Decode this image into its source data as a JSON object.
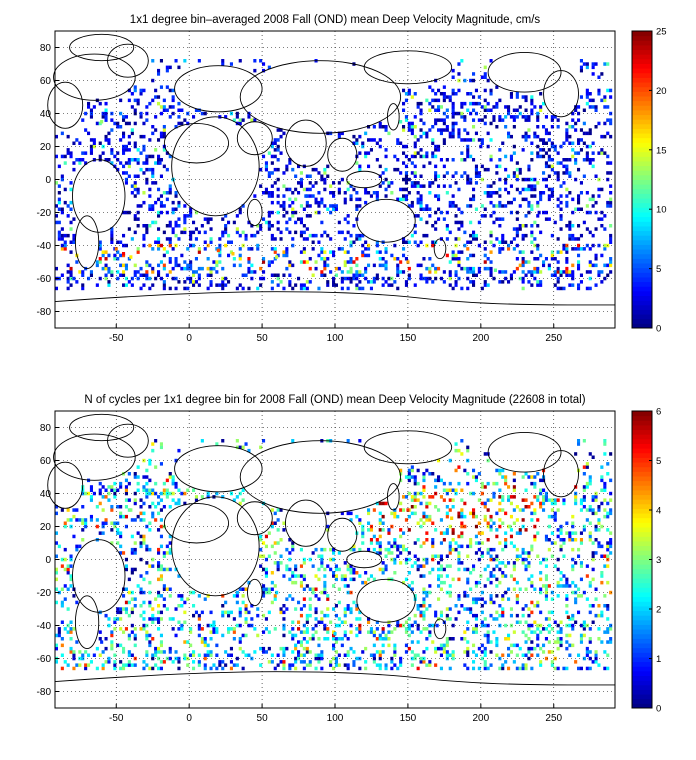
{
  "chart_data": [
    {
      "type": "heatmap",
      "title": "1x1 degree bin–averaged 2008 Fall (OND) mean Deep Velocity Magnitude, cm/s",
      "xlabel": "",
      "ylabel": "",
      "xlim": [
        -92,
        292
      ],
      "ylim": [
        -90,
        90
      ],
      "x_ticks": [
        -50,
        0,
        50,
        100,
        150,
        200,
        250
      ],
      "y_ticks": [
        80,
        60,
        40,
        20,
        0,
        -20,
        -40,
        -60,
        -80
      ],
      "grid": true,
      "colormap": "jet",
      "clim": [
        0,
        25
      ],
      "colorbar_ticks": [
        0,
        5,
        10,
        15,
        20,
        25
      ],
      "colorbar_placement": "right",
      "values_note": "",
      "sampled_points": [
        {
          "lon": -45,
          "lat": -45,
          "value": 22
        },
        {
          "lon": -50,
          "lat": -42,
          "value": 19
        },
        {
          "lon": -40,
          "lat": -47,
          "value": 16
        },
        {
          "lon": 20,
          "lat": -43,
          "value": 20
        },
        {
          "lon": 30,
          "lat": -45,
          "value": 17
        },
        {
          "lon": 60,
          "lat": -47,
          "value": 14
        },
        {
          "lon": 150,
          "lat": -50,
          "value": 18
        },
        {
          "lon": 210,
          "lat": -55,
          "value": 12
        },
        {
          "lon": -60,
          "lat": 35,
          "value": 13
        },
        {
          "lon": 145,
          "lat": 35,
          "value": 11
        },
        {
          "lon": 200,
          "lat": 20,
          "value": 3
        },
        {
          "lon": 240,
          "lat": -20,
          "value": 2
        },
        {
          "lon": -20,
          "lat": 10,
          "value": 4
        },
        {
          "lon": 80,
          "lat": -10,
          "value": 5
        }
      ]
    },
    {
      "type": "heatmap",
      "title": "N of cycles per 1x1 degree bin for 2008 Fall (OND) mean Deep Velocity Magnitude (22608 in total)",
      "xlabel": "",
      "ylabel": "",
      "xlim": [
        -92,
        292
      ],
      "ylim": [
        -90,
        90
      ],
      "x_ticks": [
        -50,
        0,
        50,
        100,
        150,
        200,
        250
      ],
      "y_ticks": [
        80,
        60,
        40,
        20,
        0,
        -20,
        -40,
        -60,
        -80
      ],
      "grid": true,
      "colormap": "jet",
      "clim": [
        0,
        6
      ],
      "colorbar_ticks": [
        0,
        1,
        2,
        3,
        4,
        5,
        6
      ],
      "colorbar_placement": "right",
      "sampled_points": [
        {
          "lon": 150,
          "lat": 30,
          "value": 5
        },
        {
          "lon": 180,
          "lat": 25,
          "value": 4
        },
        {
          "lon": 220,
          "lat": 20,
          "value": 3
        },
        {
          "lon": -40,
          "lat": 30,
          "value": 3
        },
        {
          "lon": 60,
          "lat": -20,
          "value": 2
        },
        {
          "lon": 170,
          "lat": -40,
          "value": 1
        },
        {
          "lon": 260,
          "lat": -35,
          "value": 6
        },
        {
          "lon": -60,
          "lat": -50,
          "value": 1
        },
        {
          "lon": 100,
          "lat": -45,
          "value": 2
        },
        {
          "lon": 200,
          "lat": -10,
          "value": 3
        }
      ]
    }
  ]
}
